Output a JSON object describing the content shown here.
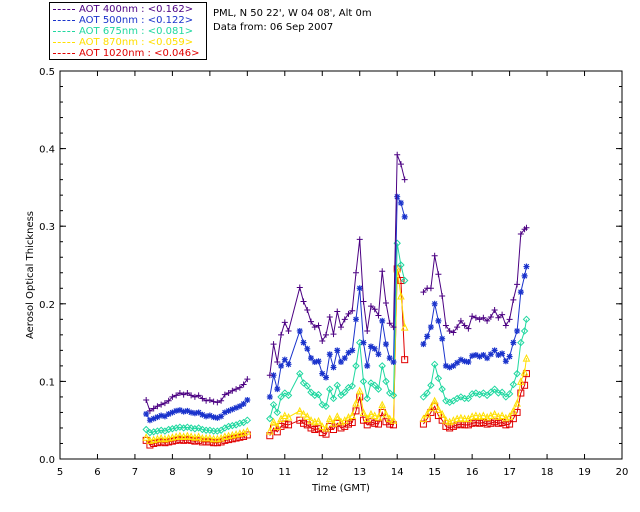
{
  "legend": {
    "entries": [
      {
        "label": "AOT  400nm : <0.162>",
        "color": "#4b0082"
      },
      {
        "label": "AOT  500nm : <0.122>",
        "color": "#1a33cc"
      },
      {
        "label": "AOT  675nm : <0.081>",
        "color": "#20d8a0"
      },
      {
        "label": "AOT  870nm : <0.059>",
        "color": "#ffdf00"
      },
      {
        "label": "AOT 1020nm : <0.046>",
        "color": "#e00000"
      }
    ]
  },
  "info": {
    "line1": "PML, N 50 22', W 04 08', Alt 0m",
    "line2": "Data from: 06 Sep 2007"
  },
  "chart_data": {
    "type": "line",
    "xlabel": "Time (GMT)",
    "ylabel": "Aerosol Optical Thickness",
    "xlim": [
      5,
      20
    ],
    "ylim": [
      0,
      0.5
    ],
    "xticks": [
      "5",
      "6",
      "7",
      "8",
      "9",
      "10",
      "11",
      "12",
      "13",
      "14",
      "15",
      "16",
      "17",
      "18",
      "19",
      "20"
    ],
    "yticks": [
      "0.0",
      "0.1",
      "0.2",
      "0.3",
      "0.4",
      "0.5"
    ],
    "grid": false,
    "legend_position": "top-left-outside",
    "series": [
      {
        "name": "AOT  400nm : <0.162>",
        "color": "#4b0082",
        "marker": "plus",
        "x": [
          7.3,
          7.4,
          7.5,
          7.6,
          7.7,
          7.8,
          7.9,
          8.0,
          8.1,
          8.2,
          8.3,
          8.4,
          8.5,
          8.6,
          8.7,
          8.8,
          8.9,
          9.0,
          9.1,
          9.2,
          9.3,
          9.4,
          9.5,
          9.6,
          9.7,
          9.8,
          9.9,
          10.0,
          10.6,
          10.7,
          10.8,
          10.9,
          11.0,
          11.1,
          11.4,
          11.5,
          11.6,
          11.7,
          11.8,
          11.9,
          12.0,
          12.1,
          12.2,
          12.3,
          12.4,
          12.5,
          12.6,
          12.7,
          12.8,
          12.9,
          13.0,
          13.1,
          13.2,
          13.3,
          13.4,
          13.5,
          13.6,
          13.7,
          13.8,
          13.9,
          14.0,
          14.1,
          14.2,
          14.7,
          14.8,
          14.9,
          15.0,
          15.1,
          15.2,
          15.3,
          15.4,
          15.5,
          15.6,
          15.7,
          15.8,
          15.9,
          16.0,
          16.1,
          16.2,
          16.3,
          16.4,
          16.5,
          16.6,
          16.7,
          16.8,
          16.9,
          17.0,
          17.1,
          17.2,
          17.3,
          17.4,
          17.45
        ],
        "y": [
          0.076,
          0.062,
          0.065,
          0.068,
          0.07,
          0.072,
          0.075,
          0.08,
          0.082,
          0.085,
          0.083,
          0.085,
          0.082,
          0.08,
          0.082,
          0.078,
          0.075,
          0.076,
          0.074,
          0.073,
          0.075,
          0.083,
          0.085,
          0.088,
          0.09,
          0.092,
          0.096,
          0.103,
          0.108,
          0.148,
          0.125,
          0.16,
          0.176,
          0.165,
          0.221,
          0.203,
          0.192,
          0.177,
          0.17,
          0.172,
          0.152,
          0.16,
          0.183,
          0.161,
          0.19,
          0.17,
          0.18,
          0.187,
          0.191,
          0.24,
          0.283,
          0.203,
          0.165,
          0.197,
          0.193,
          0.185,
          0.242,
          0.201,
          0.175,
          0.17,
          0.392,
          0.38,
          0.36,
          0.215,
          0.22,
          0.22,
          0.262,
          0.238,
          0.21,
          0.172,
          0.165,
          0.163,
          0.17,
          0.178,
          0.172,
          0.168,
          0.184,
          0.182,
          0.18,
          0.182,
          0.178,
          0.183,
          0.192,
          0.182,
          0.186,
          0.172,
          0.18,
          0.205,
          0.225,
          0.29,
          0.296,
          0.298
        ]
      },
      {
        "name": "AOT  500nm : <0.122>",
        "color": "#1a33cc",
        "marker": "asterisk",
        "x": [
          7.3,
          7.4,
          7.5,
          7.6,
          7.7,
          7.8,
          7.9,
          8.0,
          8.1,
          8.2,
          8.3,
          8.4,
          8.5,
          8.6,
          8.7,
          8.8,
          8.9,
          9.0,
          9.1,
          9.2,
          9.3,
          9.4,
          9.5,
          9.6,
          9.7,
          9.8,
          9.9,
          10.0,
          10.6,
          10.7,
          10.8,
          10.9,
          11.0,
          11.1,
          11.4,
          11.5,
          11.6,
          11.7,
          11.8,
          11.9,
          12.0,
          12.1,
          12.2,
          12.3,
          12.4,
          12.5,
          12.6,
          12.7,
          12.8,
          12.9,
          13.0,
          13.1,
          13.2,
          13.3,
          13.4,
          13.5,
          13.6,
          13.7,
          13.8,
          13.9,
          14.0,
          14.1,
          14.2,
          14.7,
          14.8,
          14.9,
          15.0,
          15.1,
          15.2,
          15.3,
          15.4,
          15.5,
          15.6,
          15.7,
          15.8,
          15.9,
          16.0,
          16.1,
          16.2,
          16.3,
          16.4,
          16.5,
          16.6,
          16.7,
          16.8,
          16.9,
          17.0,
          17.1,
          17.2,
          17.3,
          17.4,
          17.45
        ],
        "y": [
          0.058,
          0.05,
          0.052,
          0.054,
          0.056,
          0.055,
          0.058,
          0.06,
          0.062,
          0.063,
          0.061,
          0.062,
          0.06,
          0.059,
          0.06,
          0.057,
          0.055,
          0.056,
          0.054,
          0.053,
          0.055,
          0.06,
          0.062,
          0.064,
          0.066,
          0.068,
          0.071,
          0.076,
          0.08,
          0.108,
          0.09,
          0.12,
          0.128,
          0.122,
          0.165,
          0.15,
          0.142,
          0.13,
          0.125,
          0.126,
          0.11,
          0.105,
          0.135,
          0.118,
          0.14,
          0.125,
          0.13,
          0.137,
          0.14,
          0.18,
          0.22,
          0.15,
          0.12,
          0.145,
          0.142,
          0.135,
          0.178,
          0.148,
          0.13,
          0.125,
          0.338,
          0.33,
          0.312,
          0.148,
          0.158,
          0.17,
          0.2,
          0.178,
          0.155,
          0.12,
          0.118,
          0.12,
          0.124,
          0.128,
          0.126,
          0.125,
          0.133,
          0.134,
          0.132,
          0.134,
          0.13,
          0.135,
          0.14,
          0.134,
          0.136,
          0.126,
          0.132,
          0.15,
          0.165,
          0.215,
          0.236,
          0.248
        ]
      },
      {
        "name": "AOT  675nm : <0.081>",
        "color": "#20d8a0",
        "marker": "diamond",
        "x": [
          7.3,
          7.4,
          7.5,
          7.6,
          7.7,
          7.8,
          7.9,
          8.0,
          8.1,
          8.2,
          8.3,
          8.4,
          8.5,
          8.6,
          8.7,
          8.8,
          8.9,
          9.0,
          9.1,
          9.2,
          9.3,
          9.4,
          9.5,
          9.6,
          9.7,
          9.8,
          9.9,
          10.0,
          10.6,
          10.7,
          10.8,
          10.9,
          11.0,
          11.1,
          11.4,
          11.5,
          11.6,
          11.7,
          11.8,
          11.9,
          12.0,
          12.1,
          12.2,
          12.3,
          12.4,
          12.5,
          12.6,
          12.7,
          12.8,
          12.9,
          13.0,
          13.1,
          13.2,
          13.3,
          13.4,
          13.5,
          13.6,
          13.7,
          13.8,
          13.9,
          14.0,
          14.1,
          14.2,
          14.7,
          14.8,
          14.9,
          15.0,
          15.1,
          15.2,
          15.3,
          15.4,
          15.5,
          15.6,
          15.7,
          15.8,
          15.9,
          16.0,
          16.1,
          16.2,
          16.3,
          16.4,
          16.5,
          16.6,
          16.7,
          16.8,
          16.9,
          17.0,
          17.1,
          17.2,
          17.3,
          17.4,
          17.45
        ],
        "y": [
          0.038,
          0.034,
          0.035,
          0.036,
          0.037,
          0.036,
          0.038,
          0.039,
          0.04,
          0.041,
          0.04,
          0.041,
          0.04,
          0.039,
          0.04,
          0.038,
          0.037,
          0.037,
          0.036,
          0.036,
          0.037,
          0.04,
          0.042,
          0.043,
          0.044,
          0.046,
          0.047,
          0.05,
          0.052,
          0.07,
          0.06,
          0.08,
          0.085,
          0.082,
          0.11,
          0.098,
          0.094,
          0.086,
          0.082,
          0.083,
          0.07,
          0.068,
          0.09,
          0.078,
          0.095,
          0.082,
          0.086,
          0.092,
          0.094,
          0.12,
          0.15,
          0.1,
          0.078,
          0.098,
          0.095,
          0.09,
          0.12,
          0.1,
          0.085,
          0.082,
          0.278,
          0.25,
          0.23,
          0.08,
          0.085,
          0.095,
          0.122,
          0.104,
          0.09,
          0.075,
          0.073,
          0.075,
          0.078,
          0.08,
          0.078,
          0.078,
          0.084,
          0.085,
          0.083,
          0.085,
          0.082,
          0.086,
          0.09,
          0.085,
          0.086,
          0.08,
          0.084,
          0.096,
          0.11,
          0.15,
          0.165,
          0.18
        ]
      },
      {
        "name": "AOT  870nm : <0.059>",
        "color": "#ffdf00",
        "marker": "triangle",
        "x": [
          7.3,
          7.4,
          7.5,
          7.6,
          7.7,
          7.8,
          7.9,
          8.0,
          8.1,
          8.2,
          8.3,
          8.4,
          8.5,
          8.6,
          8.7,
          8.8,
          8.9,
          9.0,
          9.1,
          9.2,
          9.3,
          9.4,
          9.5,
          9.6,
          9.7,
          9.8,
          9.9,
          10.0,
          10.6,
          10.7,
          10.8,
          10.9,
          11.0,
          11.1,
          11.4,
          11.5,
          11.6,
          11.7,
          11.8,
          11.9,
          12.0,
          12.1,
          12.2,
          12.3,
          12.4,
          12.5,
          12.6,
          12.7,
          12.8,
          12.9,
          13.0,
          13.1,
          13.2,
          13.3,
          13.4,
          13.5,
          13.6,
          13.7,
          13.8,
          13.9,
          14.0,
          14.1,
          14.2,
          14.7,
          14.8,
          14.9,
          15.0,
          15.1,
          15.2,
          15.3,
          15.4,
          15.5,
          15.6,
          15.7,
          15.8,
          15.9,
          16.0,
          16.1,
          16.2,
          16.3,
          16.4,
          16.5,
          16.6,
          16.7,
          16.8,
          16.9,
          17.0,
          17.1,
          17.2,
          17.3,
          17.4,
          17.45
        ],
        "y": [
          0.028,
          0.024,
          0.025,
          0.026,
          0.027,
          0.026,
          0.027,
          0.028,
          0.029,
          0.03,
          0.029,
          0.03,
          0.029,
          0.028,
          0.029,
          0.027,
          0.027,
          0.027,
          0.026,
          0.026,
          0.027,
          0.029,
          0.03,
          0.031,
          0.032,
          0.033,
          0.034,
          0.036,
          0.036,
          0.048,
          0.042,
          0.052,
          0.056,
          0.054,
          0.062,
          0.058,
          0.055,
          0.05,
          0.048,
          0.049,
          0.042,
          0.04,
          0.052,
          0.046,
          0.055,
          0.048,
          0.05,
          0.054,
          0.056,
          0.072,
          0.088,
          0.06,
          0.052,
          0.058,
          0.056,
          0.054,
          0.07,
          0.058,
          0.052,
          0.05,
          0.245,
          0.21,
          0.17,
          0.052,
          0.058,
          0.066,
          0.075,
          0.064,
          0.058,
          0.05,
          0.048,
          0.05,
          0.052,
          0.053,
          0.052,
          0.052,
          0.055,
          0.056,
          0.055,
          0.056,
          0.054,
          0.056,
          0.058,
          0.055,
          0.056,
          0.053,
          0.055,
          0.062,
          0.072,
          0.1,
          0.112,
          0.13
        ]
      },
      {
        "name": "AOT 1020nm : <0.046>",
        "color": "#e00000",
        "marker": "square",
        "x": [
          7.3,
          7.4,
          7.5,
          7.6,
          7.7,
          7.8,
          7.9,
          8.0,
          8.1,
          8.2,
          8.3,
          8.4,
          8.5,
          8.6,
          8.7,
          8.8,
          8.9,
          9.0,
          9.1,
          9.2,
          9.3,
          9.4,
          9.5,
          9.6,
          9.7,
          9.8,
          9.9,
          10.0,
          10.6,
          10.7,
          10.8,
          10.9,
          11.0,
          11.1,
          11.4,
          11.5,
          11.6,
          11.7,
          11.8,
          11.9,
          12.0,
          12.1,
          12.2,
          12.3,
          12.4,
          12.5,
          12.6,
          12.7,
          12.8,
          12.9,
          13.0,
          13.1,
          13.2,
          13.3,
          13.4,
          13.5,
          13.6,
          13.7,
          13.8,
          13.9,
          14.0,
          14.1,
          14.2,
          14.7,
          14.8,
          14.9,
          15.0,
          15.1,
          15.2,
          15.3,
          15.4,
          15.5,
          15.6,
          15.7,
          15.8,
          15.9,
          16.0,
          16.1,
          16.2,
          16.3,
          16.4,
          16.5,
          16.6,
          16.7,
          16.8,
          16.9,
          17.0,
          17.1,
          17.2,
          17.3,
          17.4,
          17.45
        ],
        "y": [
          0.024,
          0.018,
          0.02,
          0.021,
          0.022,
          0.021,
          0.022,
          0.023,
          0.024,
          0.025,
          0.024,
          0.025,
          0.024,
          0.023,
          0.024,
          0.022,
          0.022,
          0.022,
          0.021,
          0.021,
          0.022,
          0.024,
          0.025,
          0.026,
          0.027,
          0.028,
          0.029,
          0.031,
          0.03,
          0.04,
          0.035,
          0.042,
          0.045,
          0.044,
          0.05,
          0.046,
          0.044,
          0.04,
          0.038,
          0.039,
          0.034,
          0.032,
          0.042,
          0.038,
          0.046,
          0.04,
          0.042,
          0.045,
          0.047,
          0.062,
          0.08,
          0.05,
          0.044,
          0.048,
          0.046,
          0.045,
          0.06,
          0.048,
          0.045,
          0.044,
          0.245,
          0.23,
          0.128,
          0.045,
          0.052,
          0.06,
          0.068,
          0.056,
          0.05,
          0.042,
          0.04,
          0.042,
          0.044,
          0.045,
          0.044,
          0.044,
          0.046,
          0.047,
          0.046,
          0.047,
          0.045,
          0.046,
          0.048,
          0.046,
          0.047,
          0.044,
          0.045,
          0.052,
          0.06,
          0.085,
          0.095,
          0.11
        ]
      }
    ]
  }
}
